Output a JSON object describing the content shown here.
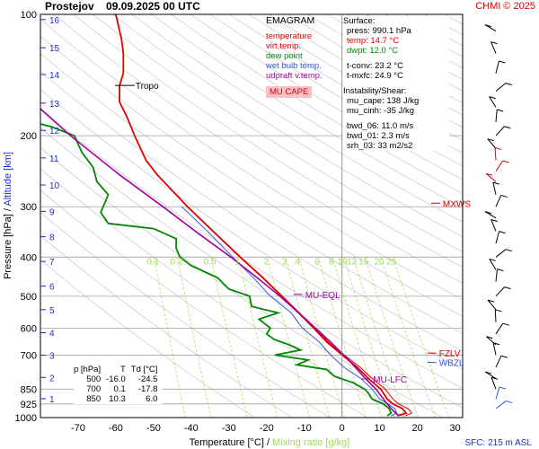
{
  "header": {
    "station": "Prostejov",
    "datetime": "09.09.2025 00 UTC",
    "credit": "CHMI © 2025"
  },
  "legend": {
    "title": "EMAGRAM",
    "items": [
      {
        "label": "temperature",
        "color": "#e00000"
      },
      {
        "label": "virt.temp.",
        "color": "#e00000"
      },
      {
        "label": "dew point",
        "color": "#008800"
      },
      {
        "label": "wet bulb temp.",
        "color": "#3355dd"
      },
      {
        "label": "udpraft v.temp.",
        "color": "#a000a0"
      }
    ],
    "mu_cape_label": "MU CAPE"
  },
  "surface": {
    "title": "Surface:",
    "press": "press: 990.1 hPa",
    "temp": "temp: 14.7 °C",
    "dwpt": "dwpt: 12.0 °C",
    "tconv": "t-conv: 23.2 °C",
    "tmxfc": "t-mxfc: 24.9 °C"
  },
  "instability": {
    "title": "Instability/Shear:",
    "mu_cape": "mu_cape: 138 J/kg",
    "mu_cinh": "mu_cinh: -35 J/kg",
    "bwd_06": "bwd_06: 11.0 m/s",
    "bwd_01": "bwd_01: 2.3 m/s",
    "srh_03": "srh_03: 33 m2/s2"
  },
  "level_table": {
    "headers": [
      "p [hPa]",
      "T",
      "Td [°C]"
    ],
    "rows": [
      [
        "500",
        "-16.0",
        "-24.5"
      ],
      [
        "700",
        "0.1",
        "-17.8"
      ],
      [
        "850",
        "10.3",
        "6.0"
      ]
    ]
  },
  "footer": {
    "sfc": "SFC: 215 m ASL"
  },
  "colors": {
    "temperature": "#e00000",
    "dewpoint": "#008800",
    "wetbulb": "#3355dd",
    "parcel": "#a000a0",
    "mixing": "#9ddc5a",
    "altitude": "#1a2fd0",
    "isotherm": "#c8c8c8"
  },
  "chart_data": {
    "type": "line",
    "xlabel": "Temperature [°C]",
    "xlabel2": "Mixing ratio [g/kg]",
    "ylabel": "Pressure [hPa]",
    "ylabel2": "Altitude [km]",
    "y_scale": "log",
    "y_ticks": [
      100,
      200,
      300,
      400,
      500,
      600,
      700,
      850,
      925,
      1000
    ],
    "x_ticks": [
      -70,
      -60,
      -50,
      -40,
      -30,
      -20,
      -10,
      0,
      10,
      20,
      30
    ],
    "x_range": [
      -80,
      32
    ],
    "y_range": [
      1000,
      100
    ],
    "altitude_ticks": [
      {
        "km": 1,
        "p": 898
      },
      {
        "km": 2,
        "p": 795
      },
      {
        "km": 3,
        "p": 700
      },
      {
        "km": 4,
        "p": 616
      },
      {
        "km": 5,
        "p": 540
      },
      {
        "km": 6,
        "p": 472
      },
      {
        "km": 7,
        "p": 410
      },
      {
        "km": 8,
        "p": 356
      },
      {
        "km": 9,
        "p": 308
      },
      {
        "km": 10,
        "p": 265
      },
      {
        "km": 11,
        "p": 227
      },
      {
        "km": 12,
        "p": 194
      },
      {
        "km": 13,
        "p": 166
      },
      {
        "km": 14,
        "p": 141
      },
      {
        "km": 15,
        "p": 121
      },
      {
        "km": 16,
        "p": 103
      }
    ],
    "mixing_ratio_labels": [
      "0.1",
      "0.2",
      "0.5",
      "1",
      "2",
      "3",
      "4",
      "6",
      "8",
      "10",
      "12",
      "15",
      "20",
      "25"
    ],
    "mixing_ratio_values": [
      0.1,
      0.2,
      0.5,
      1,
      2,
      3,
      4,
      6,
      8,
      10,
      12,
      15,
      20,
      25
    ],
    "mixing_label_pressure": 390,
    "series": [
      {
        "name": "temperature",
        "points": [
          [
            990,
            14.7
          ],
          [
            975,
            17
          ],
          [
            950,
            16
          ],
          [
            925,
            13.5
          ],
          [
            900,
            12
          ],
          [
            850,
            10.3
          ],
          [
            800,
            7
          ],
          [
            750,
            4
          ],
          [
            700,
            0.1
          ],
          [
            650,
            -4
          ],
          [
            600,
            -7.5
          ],
          [
            550,
            -11.5
          ],
          [
            500,
            -16
          ],
          [
            450,
            -21
          ],
          [
            400,
            -27
          ],
          [
            350,
            -33.5
          ],
          [
            300,
            -41
          ],
          [
            280,
            -44
          ],
          [
            250,
            -49
          ],
          [
            230,
            -52
          ],
          [
            200,
            -55
          ],
          [
            180,
            -57
          ],
          [
            165,
            -59
          ],
          [
            150,
            -59
          ],
          [
            140,
            -58
          ],
          [
            125,
            -58
          ],
          [
            115,
            -58.5
          ],
          [
            100,
            -60
          ]
        ]
      },
      {
        "name": "virt.temp.",
        "points": [
          [
            990,
            16.8
          ],
          [
            975,
            18.5
          ],
          [
            950,
            17.5
          ],
          [
            925,
            15
          ],
          [
            900,
            13.5
          ],
          [
            850,
            11.5
          ],
          [
            800,
            8
          ],
          [
            750,
            4.8
          ],
          [
            700,
            0.6
          ],
          [
            650,
            -3.6
          ],
          [
            600,
            -7.2
          ],
          [
            550,
            -11.3
          ],
          [
            500,
            -15.8
          ],
          [
            450,
            -20.9
          ],
          [
            400,
            -27
          ],
          [
            350,
            -33.5
          ],
          [
            300,
            -41
          ],
          [
            280,
            -44
          ],
          [
            250,
            -49
          ],
          [
            230,
            -52
          ],
          [
            200,
            -55
          ],
          [
            180,
            -57
          ],
          [
            165,
            -59
          ],
          [
            150,
            -59
          ],
          [
            140,
            -58
          ],
          [
            125,
            -58
          ],
          [
            115,
            -58.5
          ],
          [
            100,
            -60
          ]
        ]
      },
      {
        "name": "dew point",
        "points": [
          [
            990,
            12
          ],
          [
            975,
            13
          ],
          [
            950,
            12.5
          ],
          [
            925,
            11
          ],
          [
            900,
            8
          ],
          [
            870,
            7
          ],
          [
            850,
            6
          ],
          [
            820,
            3
          ],
          [
            790,
            -2
          ],
          [
            760,
            -4
          ],
          [
            740,
            -12
          ],
          [
            720,
            -9
          ],
          [
            700,
            -17.8
          ],
          [
            680,
            -11
          ],
          [
            660,
            -14
          ],
          [
            640,
            -18
          ],
          [
            620,
            -20
          ],
          [
            600,
            -19
          ],
          [
            570,
            -22
          ],
          [
            550,
            -17
          ],
          [
            530,
            -24
          ],
          [
            500,
            -24.5
          ],
          [
            480,
            -30
          ],
          [
            450,
            -33
          ],
          [
            420,
            -40
          ],
          [
            400,
            -43
          ],
          [
            380,
            -44
          ],
          [
            360,
            -44
          ],
          [
            340,
            -50
          ],
          [
            330,
            -62
          ],
          [
            310,
            -64
          ],
          [
            280,
            -62
          ],
          [
            260,
            -65
          ],
          [
            240,
            -66
          ],
          [
            220,
            -69
          ],
          [
            200,
            -71
          ],
          [
            190,
            -77
          ],
          [
            185,
            -82
          ]
        ]
      },
      {
        "name": "wet bulb temp.",
        "points": [
          [
            990,
            13
          ],
          [
            975,
            14.5
          ],
          [
            950,
            14
          ],
          [
            925,
            12.2
          ],
          [
            900,
            10
          ],
          [
            850,
            8
          ],
          [
            800,
            5
          ],
          [
            750,
            0.5
          ],
          [
            700,
            -3
          ],
          [
            650,
            -6
          ],
          [
            600,
            -10.5
          ],
          [
            550,
            -13.5
          ],
          [
            500,
            -19
          ],
          [
            450,
            -23.5
          ],
          [
            400,
            -29
          ],
          [
            350,
            -35
          ],
          [
            300,
            -42.5
          ]
        ]
      },
      {
        "name": "udpraft v.temp.",
        "points": [
          [
            990,
            15
          ],
          [
            950,
            13
          ],
          [
            900,
            11
          ],
          [
            850,
            9
          ],
          [
            800,
            6.2
          ],
          [
            750,
            3.5
          ],
          [
            700,
            0.5
          ],
          [
            650,
            -3
          ],
          [
            600,
            -7
          ],
          [
            550,
            -11.5
          ],
          [
            500,
            -16.5
          ],
          [
            450,
            -22.5
          ],
          [
            400,
            -29.5
          ],
          [
            350,
            -38
          ],
          [
            300,
            -47.5
          ],
          [
            250,
            -59
          ],
          [
            200,
            -72
          ],
          [
            165,
            -82
          ]
        ]
      }
    ],
    "annotations": [
      {
        "label": "Tropo",
        "p": 150,
        "t": -55,
        "color": "#000000"
      },
      {
        "label": "MU-EQL",
        "p": 495,
        "t": -10,
        "color": "#a000a0"
      },
      {
        "label": "MU-LFC",
        "p": 802,
        "t": 8,
        "color": "#a000a0"
      },
      {
        "label": "MXWS",
        "p": 294,
        "t": 26.5,
        "color": "#d00000"
      },
      {
        "label": "FZLV",
        "p": 692,
        "t": 25.5,
        "color": "#d00000"
      },
      {
        "label": "WBZL",
        "p": 730,
        "t": 25.5,
        "color": "#3355dd"
      }
    ]
  }
}
